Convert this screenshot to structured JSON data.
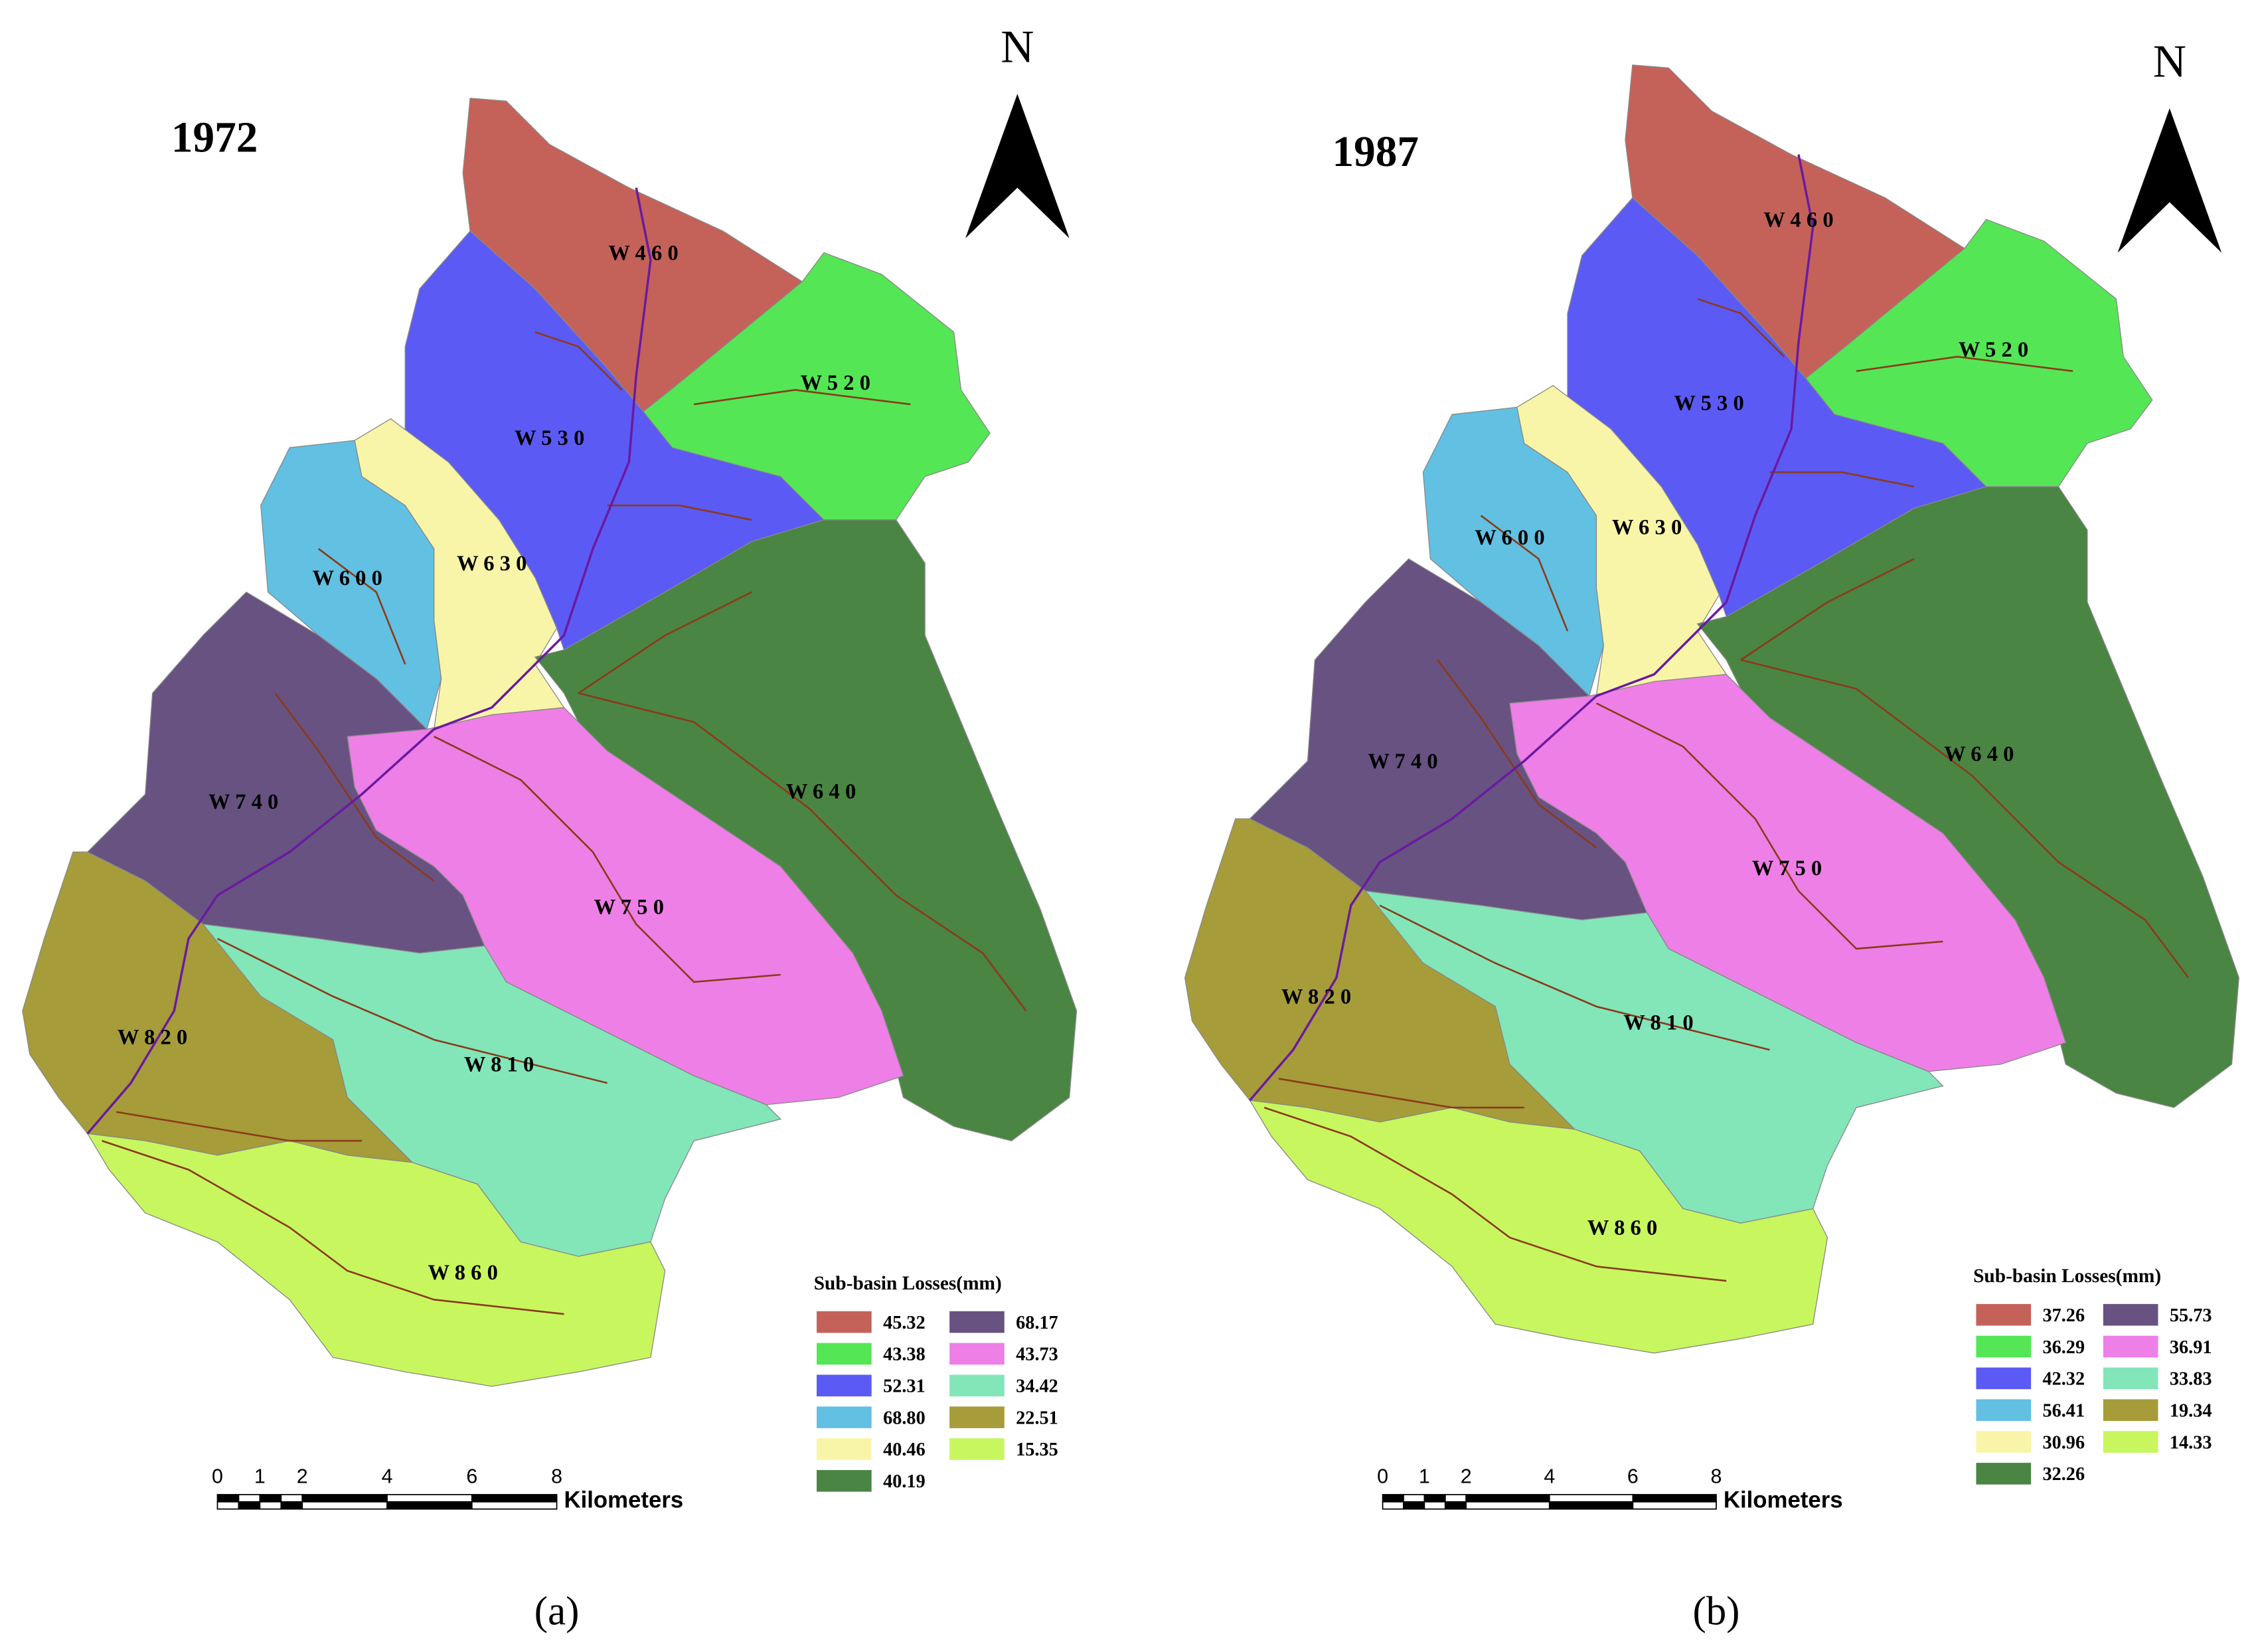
{
  "panels": [
    {
      "year": "1972",
      "north": "N",
      "legend_title": "Sub-basin Losses(mm)",
      "scale_ticks": [
        "0",
        "1",
        "2",
        "4",
        "6",
        "8"
      ],
      "scale_unit": "Kilometers",
      "caption": "(a)",
      "basins": [
        {
          "label": "W 4 6 0",
          "loss": "45.32",
          "color": "#c4625a"
        },
        {
          "label": "W 5 2 0",
          "loss": "43.38",
          "color": "#55e655"
        },
        {
          "label": "W 5 3 0",
          "loss": "52.31",
          "color": "#5c5af5"
        },
        {
          "label": "W 6 0 0",
          "loss": "68.80",
          "color": "#62c0e2"
        },
        {
          "label": "W 6 3 0",
          "loss": "40.46",
          "color": "#f8f5a8"
        },
        {
          "label": "W 6 4 0",
          "loss": "40.19",
          "color": "#4a8544"
        },
        {
          "label": "W 7 4 0",
          "loss": "68.17",
          "color": "#675282"
        },
        {
          "label": "W 7 5 0",
          "loss": "43.73",
          "color": "#ee7fe6"
        },
        {
          "label": "W 8 1 0",
          "loss": "34.42",
          "color": "#82e6b9"
        },
        {
          "label": "W 8 2 0",
          "loss": "22.51",
          "color": "#a69c3a"
        },
        {
          "label": "W 8 6 0",
          "loss": "15.35",
          "color": "#c8f65f"
        }
      ]
    },
    {
      "year": "1987",
      "north": "N",
      "legend_title": "Sub-basin Losses(mm)",
      "scale_ticks": [
        "0",
        "1",
        "2",
        "4",
        "6",
        "8"
      ],
      "scale_unit": "Kilometers",
      "caption": "(b)",
      "basins": [
        {
          "label": "W 4 6 0",
          "loss": "37.26",
          "color": "#c4625a"
        },
        {
          "label": "W 5 2 0",
          "loss": "36.29",
          "color": "#55e655"
        },
        {
          "label": "W 5 3 0",
          "loss": "42.32",
          "color": "#5c5af5"
        },
        {
          "label": "W 6 0 0",
          "loss": "56.41",
          "color": "#62c0e2"
        },
        {
          "label": "W 6 3 0",
          "loss": "30.96",
          "color": "#f8f5a8"
        },
        {
          "label": "W 6 4 0",
          "loss": "32.26",
          "color": "#4a8544"
        },
        {
          "label": "W 7 4 0",
          "loss": "55.73",
          "color": "#675282"
        },
        {
          "label": "W 7 5 0",
          "loss": "36.91",
          "color": "#ee7fe6"
        },
        {
          "label": "W 8 1 0",
          "loss": "33.83",
          "color": "#82e6b9"
        },
        {
          "label": "W 8 2 0",
          "loss": "19.34",
          "color": "#a69c3a"
        },
        {
          "label": "W 8 6 0",
          "loss": "14.33",
          "color": "#c8f65f"
        }
      ]
    }
  ]
}
